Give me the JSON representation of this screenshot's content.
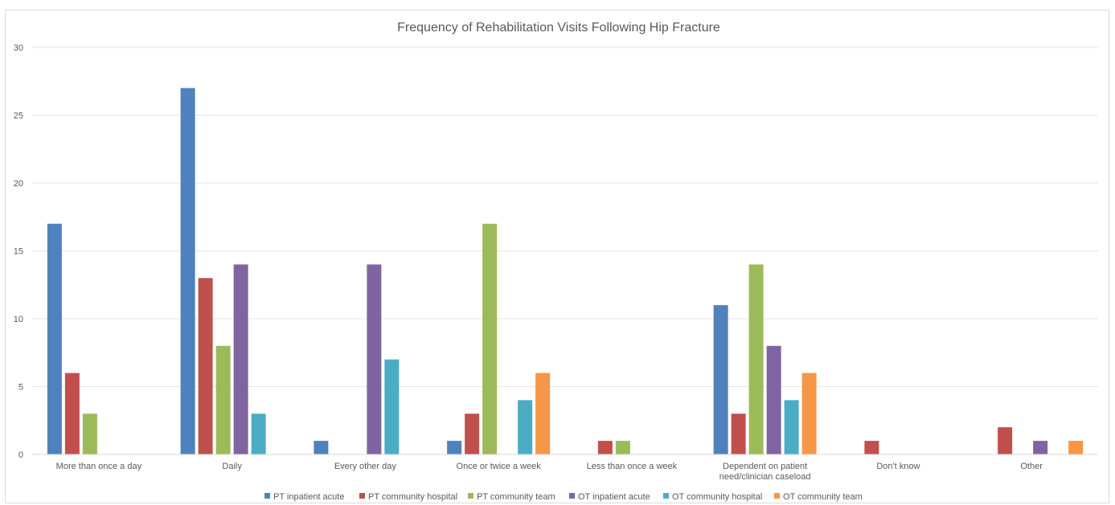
{
  "chart_data": {
    "type": "bar",
    "title": "Frequency of Rehabilitation Visits Following Hip Fracture",
    "xlabel": "",
    "ylabel": "",
    "ylim": [
      0,
      30
    ],
    "yticks": [
      0,
      5,
      10,
      15,
      20,
      25,
      30
    ],
    "grid": true,
    "legend_position": "bottom",
    "categories": [
      [
        "More than once a day"
      ],
      [
        "Daily"
      ],
      [
        "Every other day"
      ],
      [
        "Once or twice a week"
      ],
      [
        "Less than once a week"
      ],
      [
        "Dependent on patient",
        "need/clinician caseload"
      ],
      [
        "Don't know"
      ],
      [
        "Other"
      ]
    ],
    "series": [
      {
        "name": "PT inpatient acute",
        "color": "#4f81bd",
        "values": [
          17,
          27,
          1,
          1,
          0,
          11,
          0,
          0
        ]
      },
      {
        "name": "PT community hospital",
        "color": "#c0504d",
        "values": [
          6,
          13,
          0,
          3,
          1,
          3,
          1,
          2
        ]
      },
      {
        "name": "PT community team",
        "color": "#9bbb59",
        "values": [
          3,
          8,
          0,
          17,
          1,
          14,
          0,
          0
        ]
      },
      {
        "name": "OT inpatient acute",
        "color": "#8064a2",
        "values": [
          0,
          14,
          14,
          0,
          0,
          8,
          0,
          1
        ]
      },
      {
        "name": "OT community hospital",
        "color": "#4bacc6",
        "values": [
          0,
          3,
          7,
          4,
          0,
          4,
          0,
          0
        ]
      },
      {
        "name": "OT community team",
        "color": "#f79646",
        "values": [
          0,
          0,
          0,
          6,
          0,
          6,
          0,
          1
        ]
      }
    ]
  }
}
